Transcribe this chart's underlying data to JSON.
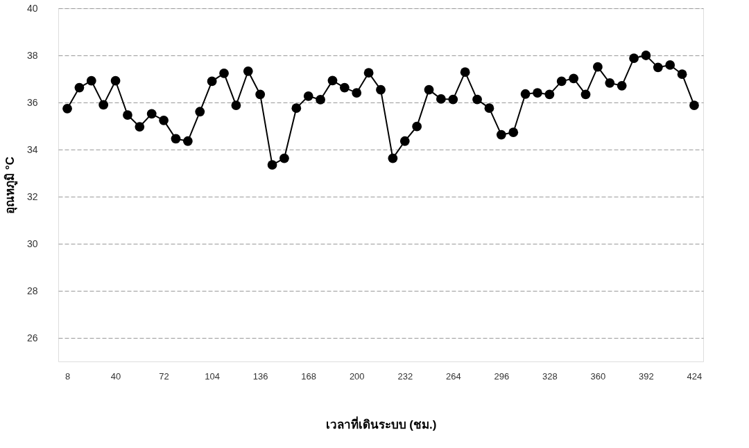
{
  "chart_data": {
    "type": "line",
    "xlabel": "เวลาที่เดินระบบ (ชม.)",
    "ylabel": "อุณหภูมิ °C",
    "x": [
      8,
      16,
      24,
      32,
      40,
      48,
      56,
      64,
      72,
      80,
      88,
      96,
      104,
      112,
      120,
      128,
      136,
      144,
      152,
      160,
      168,
      176,
      184,
      192,
      200,
      208,
      216,
      224,
      232,
      240,
      248,
      256,
      264,
      272,
      280,
      288,
      296,
      304,
      312,
      320,
      328,
      336,
      344,
      352,
      360,
      368,
      376,
      384,
      392,
      400,
      408,
      416,
      424
    ],
    "series": [
      {
        "color": "#000000",
        "values": [
          35.74,
          36.63,
          36.92,
          35.9,
          36.92,
          35.47,
          34.97,
          35.52,
          35.24,
          34.46,
          34.36,
          35.61,
          36.9,
          37.24,
          35.88,
          37.33,
          36.34,
          33.35,
          33.63,
          35.76,
          36.27,
          36.12,
          36.93,
          36.63,
          36.41,
          37.26,
          36.54,
          33.63,
          34.36,
          34.98,
          36.54,
          36.15,
          36.13,
          37.29,
          36.13,
          35.76,
          34.63,
          34.73,
          36.36,
          36.41,
          36.34,
          36.9,
          37.02,
          36.34,
          37.51,
          36.83,
          36.71,
          37.88,
          38.0,
          37.49,
          37.59,
          37.2,
          35.88
        ]
      }
    ],
    "xlim": [
      2,
      430
    ],
    "xticks": [
      8,
      40,
      72,
      104,
      136,
      168,
      200,
      232,
      264,
      296,
      328,
      360,
      392,
      424
    ],
    "ylim": [
      25,
      40
    ],
    "yticks": [
      26,
      28,
      30,
      32,
      34,
      36,
      38,
      40
    ],
    "grid": "y",
    "marker": "circle",
    "line_style": "solid",
    "legend": false
  }
}
